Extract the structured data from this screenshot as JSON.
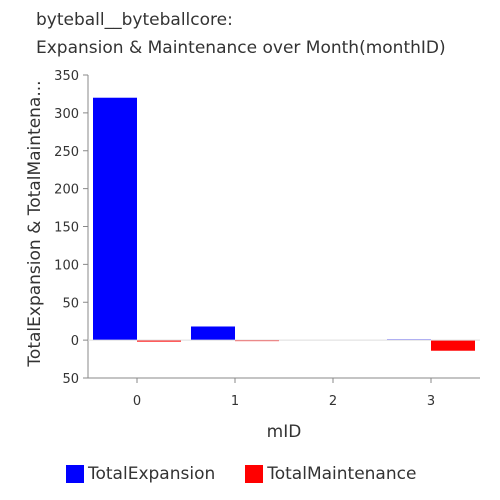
{
  "chart_data": {
    "type": "bar",
    "title_line1": "byteball__byteballcore:",
    "title_line2": "Expansion & Maintenance over Month(monthID)",
    "xlabel": "mID",
    "ylabel": "TotalExpansion & TotalMaintena...",
    "categories": [
      "0",
      "1",
      "2",
      "3"
    ],
    "series": [
      {
        "name": "TotalExpansion",
        "color": "#0000ff",
        "values": [
          320,
          18,
          0,
          1
        ]
      },
      {
        "name": "TotalMaintenance",
        "color": "#ff0000",
        "values": [
          -2,
          -1,
          0,
          -14
        ]
      }
    ],
    "ylim": [
      -50,
      350
    ],
    "yticks": [
      -50,
      0,
      50,
      100,
      150,
      200,
      250,
      300,
      350
    ],
    "ytick_labels": [
      "50",
      "0",
      "50",
      "100",
      "150",
      "200",
      "250",
      "300",
      "350"
    ],
    "grid": false,
    "legend_position": "bottom"
  }
}
